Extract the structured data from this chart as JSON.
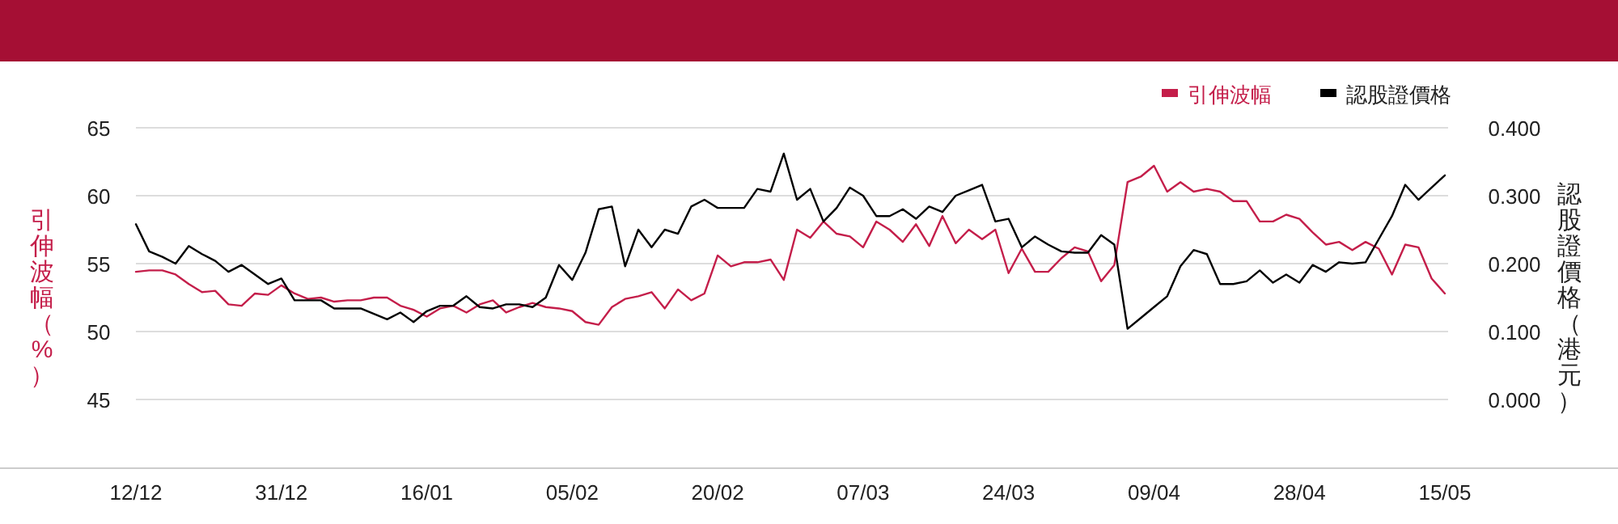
{
  "chart_data": {
    "type": "line",
    "categories": [
      "12/12",
      null,
      null,
      null,
      null,
      null,
      null,
      null,
      null,
      null,
      null,
      "31/12",
      null,
      null,
      null,
      null,
      null,
      null,
      null,
      null,
      null,
      null,
      "16/01",
      null,
      null,
      null,
      null,
      null,
      null,
      null,
      null,
      null,
      null,
      "05/02",
      null,
      null,
      null,
      null,
      null,
      null,
      null,
      null,
      null,
      null,
      "20/02",
      null,
      null,
      null,
      null,
      null,
      null,
      null,
      null,
      null,
      null,
      "07/03",
      null,
      null,
      null,
      null,
      null,
      null,
      null,
      null,
      null,
      null,
      "24/03",
      null,
      null,
      null,
      null,
      null,
      null,
      null,
      null,
      null,
      null,
      "09/04",
      null,
      null,
      null,
      null,
      null,
      null,
      null,
      null,
      null,
      null,
      "28/04",
      null,
      null,
      null,
      null,
      null,
      null,
      null,
      null,
      null,
      null,
      "15/05"
    ],
    "series": [
      {
        "name": "引伸波幅",
        "color": "#c41e4a",
        "values": [
          54.4,
          54.5,
          54.5,
          54.2,
          53.5,
          52.9,
          53.0,
          52.0,
          51.9,
          52.8,
          52.7,
          53.4,
          52.8,
          52.4,
          52.5,
          52.2,
          52.3,
          52.3,
          52.5,
          52.5,
          51.9,
          51.6,
          51.1,
          51.7,
          51.9,
          51.4,
          52.0,
          52.3,
          51.4,
          51.8,
          52.1,
          51.8,
          51.7,
          51.5,
          50.7,
          50.5,
          51.8,
          52.4,
          52.6,
          52.9,
          51.7,
          53.1,
          52.3,
          52.8,
          55.6,
          54.8,
          55.1,
          55.1,
          55.3,
          53.8,
          57.5,
          56.9,
          58.1,
          57.2,
          57.0,
          56.2,
          58.1,
          57.5,
          56.6,
          57.9,
          56.3,
          58.5,
          56.5,
          57.5,
          56.8,
          57.5,
          54.3,
          56.1,
          54.4,
          54.4,
          55.4,
          56.2,
          55.9,
          53.7,
          54.9,
          61.0,
          61.4,
          62.2,
          60.3,
          61.0,
          60.3,
          60.5,
          60.3,
          59.6,
          59.6,
          58.1,
          58.1,
          58.6,
          58.3,
          57.3,
          56.4,
          56.6,
          56.0,
          56.6,
          56.1,
          54.2,
          56.4,
          56.2,
          53.9,
          52.8
        ]
      },
      {
        "name": "認股證價格",
        "color": "#000000",
        "axis": "y2",
        "values": [
          0.258,
          0.218,
          0.21,
          0.2,
          0.226,
          0.214,
          0.204,
          0.188,
          0.198,
          0.184,
          0.17,
          0.178,
          0.146,
          0.146,
          0.146,
          0.134,
          0.134,
          0.134,
          0.126,
          0.118,
          0.128,
          0.114,
          0.13,
          0.138,
          0.138,
          0.152,
          0.136,
          0.134,
          0.14,
          0.14,
          0.136,
          0.15,
          0.198,
          0.176,
          0.216,
          0.28,
          0.284,
          0.196,
          0.25,
          0.224,
          0.25,
          0.244,
          0.284,
          0.294,
          0.282,
          0.282,
          0.282,
          0.31,
          0.306,
          0.362,
          0.294,
          0.31,
          0.262,
          0.282,
          0.312,
          0.3,
          0.27,
          0.27,
          0.28,
          0.266,
          0.284,
          0.276,
          0.3,
          0.308,
          0.316,
          0.262,
          0.266,
          0.224,
          0.24,
          0.228,
          0.218,
          0.216,
          0.216,
          0.242,
          0.228,
          0.104,
          0.12,
          0.136,
          0.152,
          0.196,
          0.22,
          0.214,
          0.17,
          0.17,
          0.174,
          0.19,
          0.172,
          0.184,
          0.172,
          0.198,
          0.188,
          0.202,
          0.2,
          0.202,
          0.236,
          0.27,
          0.316,
          0.294,
          0.312,
          0.33
        ]
      }
    ],
    "ylabel": "引伸波幅（%）",
    "y2label": "認股證價格（港元）",
    "ylim": [
      40,
      65
    ],
    "yticks": [
      45,
      50,
      55,
      60,
      65
    ],
    "y2lim": [
      -0.1,
      0.4
    ],
    "y2ticks": [
      {
        "value": 0,
        "label": "0.000"
      },
      {
        "value": 0.1,
        "label": "0.100"
      },
      {
        "value": 0.2,
        "label": "0.200"
      },
      {
        "value": 0.3,
        "label": "0.300"
      },
      {
        "value": 0.4,
        "label": "0.400"
      }
    ],
    "grid": "y",
    "legend": "top right"
  }
}
